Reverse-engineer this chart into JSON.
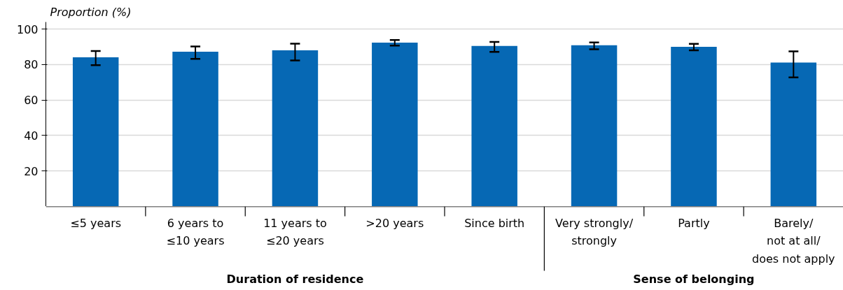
{
  "chart_data": {
    "type": "bar",
    "ylabel": "Proportion (%)",
    "categories": [
      "≤5 years",
      "6 years to ≤10 years",
      "11 years to ≤20 years",
      ">20 years",
      "Since birth",
      "Very strongly/ strongly",
      "Partly",
      "Barely/ not at all/ does not apply"
    ],
    "values": [
      84.1,
      87.3,
      88.0,
      92.4,
      90.5,
      90.9,
      90.0,
      81.2
    ],
    "errors": [
      [
        79.7,
        87.7
      ],
      [
        83.2,
        90.2
      ],
      [
        82.3,
        91.8
      ],
      [
        90.7,
        93.9
      ],
      [
        87.2,
        92.8
      ],
      [
        88.6,
        92.5
      ],
      [
        88.0,
        91.7
      ],
      [
        72.8,
        87.5
      ]
    ],
    "color": "#0668b4",
    "ylim": [
      0,
      104
    ],
    "yticks": [
      20,
      40,
      60,
      80,
      100
    ],
    "grid": "y",
    "annotations": [
      "Duration of residence",
      "Sense of belonging"
    ]
  }
}
